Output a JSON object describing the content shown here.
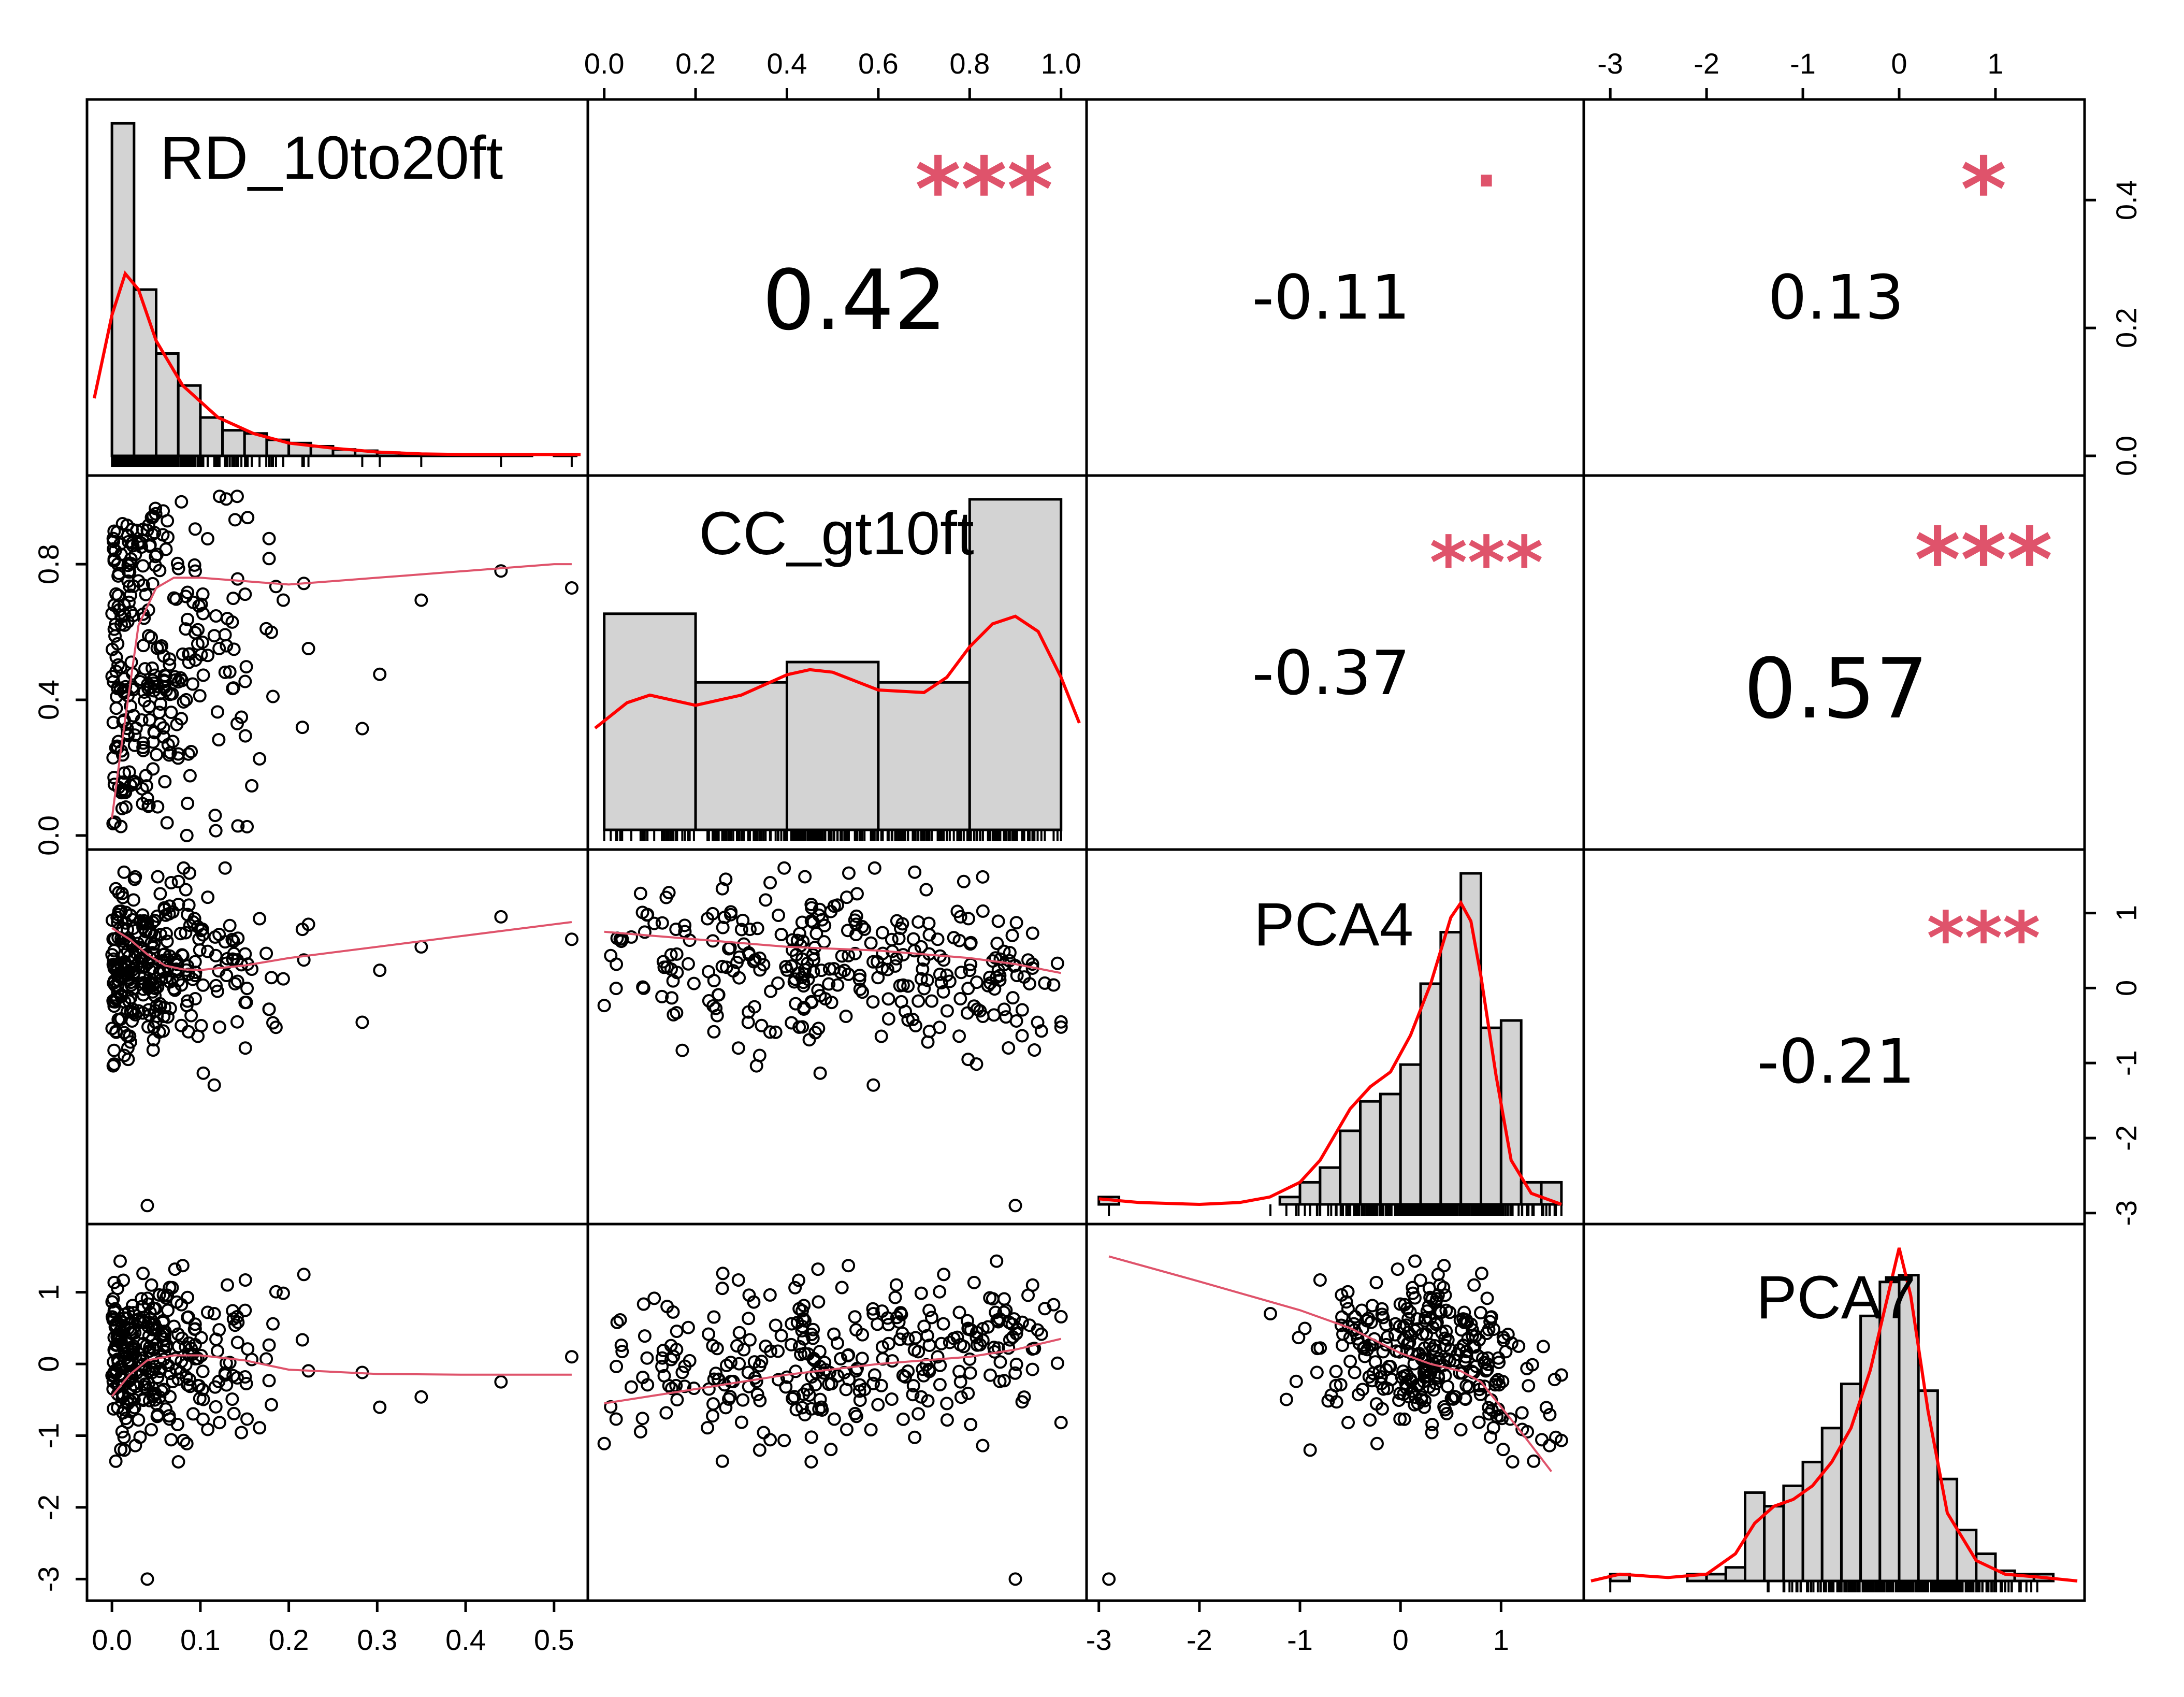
{
  "chart_data": {
    "type": "scatter-matrix",
    "title": "",
    "variables": [
      "RD_10to20ft",
      "CC_gt10ft",
      "PCA4",
      "PCA7"
    ],
    "ranges": {
      "RD_10to20ft": [
        -0.02,
        0.53
      ],
      "CC_gt10ft": [
        -0.02,
        1.04
      ],
      "PCA4": [
        -3.05,
        1.75
      ],
      "PCA7": [
        -3.2,
        1.85
      ]
    },
    "axis_ticks": {
      "RD_10to20ft": [
        "0.0",
        "0.1",
        "0.2",
        "0.3",
        "0.4",
        "0.5"
      ],
      "CC_gt10ft_top": [
        "0.0",
        "0.2",
        "0.4",
        "0.6",
        "0.8",
        "1.0"
      ],
      "CC_gt10ft_left": [
        "0.0",
        "0.4",
        "0.8"
      ],
      "PCA4_bottom": [
        "-3",
        "-2",
        "-1",
        "0",
        "1"
      ],
      "PCA4_right": [
        "1",
        "0",
        "-1",
        "-2",
        "-3"
      ],
      "PCA7_top": [
        "-3",
        "-2",
        "-1",
        "0",
        "1"
      ],
      "PCA7_left": [
        "1",
        "0",
        "-1",
        "-2",
        "-3"
      ],
      "density_right": [
        "0.0",
        "0.2",
        "0.4"
      ]
    },
    "correlations": [
      {
        "row": 0,
        "col": 1,
        "r": "0.42",
        "sig": "***"
      },
      {
        "row": 0,
        "col": 2,
        "r": "-0.11",
        "sig": "."
      },
      {
        "row": 0,
        "col": 3,
        "r": "0.13",
        "sig": "*"
      },
      {
        "row": 1,
        "col": 2,
        "r": "-0.37",
        "sig": "***"
      },
      {
        "row": 1,
        "col": 3,
        "r": "0.57",
        "sig": "***"
      },
      {
        "row": 2,
        "col": 3,
        "r": "-0.21",
        "sig": "***"
      }
    ],
    "histograms": {
      "RD_10to20ft": {
        "breaks": [
          0,
          0.025,
          0.05,
          0.075,
          0.1,
          0.125,
          0.15,
          0.175,
          0.2,
          0.225,
          0.25,
          0.275,
          0.3,
          0.325,
          0.35,
          0.375,
          0.4,
          0.425,
          0.45,
          0.475,
          0.5,
          0.525
        ],
        "density": [
          0.52,
          0.26,
          0.16,
          0.11,
          0.06,
          0.04,
          0.035,
          0.025,
          0.02,
          0.015,
          0.01,
          0.008,
          0.005,
          0.003,
          0.002,
          0.001,
          0.001,
          0.001,
          0.002,
          0.0,
          0.002
        ],
        "curve_x": [
          -0.02,
          0.0,
          0.015,
          0.03,
          0.05,
          0.08,
          0.12,
          0.16,
          0.2,
          0.25,
          0.3,
          0.35,
          0.4,
          0.45,
          0.5,
          0.53
        ],
        "curve_y": [
          0.09,
          0.22,
          0.285,
          0.26,
          0.18,
          0.11,
          0.06,
          0.035,
          0.02,
          0.012,
          0.006,
          0.003,
          0.002,
          0.002,
          0.002,
          0.002
        ]
      },
      "CC_gt10ft": {
        "breaks": [
          0,
          0.2,
          0.4,
          0.6,
          0.8,
          1.0
        ],
        "density": [
          0.85,
          0.58,
          0.66,
          0.58,
          1.3
        ],
        "curve_x": [
          -0.02,
          0.05,
          0.1,
          0.2,
          0.3,
          0.4,
          0.45,
          0.5,
          0.6,
          0.7,
          0.75,
          0.8,
          0.85,
          0.9,
          0.95,
          1.0,
          1.04
        ],
        "curve_y": [
          0.4,
          0.5,
          0.53,
          0.49,
          0.53,
          0.61,
          0.63,
          0.62,
          0.55,
          0.54,
          0.6,
          0.72,
          0.81,
          0.84,
          0.78,
          0.6,
          0.42
        ]
      },
      "PCA4": {
        "breaks": [
          -3.0,
          -2.8,
          -2.6,
          -2.4,
          -2.2,
          -2.0,
          -1.8,
          -1.6,
          -1.4,
          -1.2,
          -1.0,
          -0.8,
          -0.6,
          -0.4,
          -0.2,
          0.0,
          0.2,
          0.4,
          0.6,
          0.8,
          1.0,
          1.2,
          1.4,
          1.6
        ],
        "density": [
          0.02,
          0.0,
          0.0,
          0.0,
          0.0,
          0.0,
          0.0,
          0.0,
          0.0,
          0.02,
          0.06,
          0.1,
          0.2,
          0.28,
          0.3,
          0.38,
          0.6,
          0.74,
          0.9,
          0.48,
          0.5,
          0.06,
          0.06
        ],
        "curve_x": [
          -3.0,
          -2.6,
          -2.0,
          -1.6,
          -1.3,
          -1.0,
          -0.8,
          -0.5,
          -0.3,
          -0.1,
          0.1,
          0.3,
          0.5,
          0.6,
          0.7,
          0.8,
          0.95,
          1.1,
          1.3,
          1.6
        ],
        "curve_y": [
          0.015,
          0.005,
          0.0,
          0.005,
          0.02,
          0.06,
          0.12,
          0.26,
          0.32,
          0.36,
          0.46,
          0.6,
          0.78,
          0.82,
          0.77,
          0.62,
          0.35,
          0.12,
          0.03,
          0.0
        ]
      },
      "PCA7": {
        "breaks": [
          -3.0,
          -2.8,
          -2.6,
          -2.4,
          -2.2,
          -2.0,
          -1.8,
          -1.6,
          -1.4,
          -1.2,
          -1.0,
          -0.8,
          -0.6,
          -0.4,
          -0.2,
          0.0,
          0.2,
          0.4,
          0.6,
          0.8,
          1.0,
          1.2,
          1.4,
          1.6
        ],
        "density": [
          0.02,
          0.0,
          0.0,
          0.0,
          0.02,
          0.02,
          0.04,
          0.26,
          0.22,
          0.28,
          0.35,
          0.45,
          0.58,
          0.78,
          0.88,
          0.9,
          0.56,
          0.3,
          0.15,
          0.08,
          0.03,
          0.02,
          0.02
        ],
        "curve_x": [
          -3.2,
          -2.9,
          -2.4,
          -2.0,
          -1.7,
          -1.5,
          -1.3,
          -1.1,
          -0.9,
          -0.7,
          -0.5,
          -0.3,
          -0.15,
          0.0,
          0.12,
          0.3,
          0.5,
          0.8,
          1.1,
          1.5,
          1.85
        ],
        "curve_y": [
          0.0,
          0.02,
          0.01,
          0.02,
          0.08,
          0.17,
          0.22,
          0.24,
          0.28,
          0.35,
          0.45,
          0.62,
          0.8,
          0.98,
          0.84,
          0.5,
          0.2,
          0.06,
          0.02,
          0.01,
          0.0
        ]
      }
    },
    "smooth_lines": {
      "1_0": {
        "x": [
          0.0,
          0.01,
          0.03,
          0.05,
          0.07,
          0.1,
          0.15,
          0.2,
          0.3,
          0.4,
          0.5,
          0.52
        ],
        "y": [
          0.05,
          0.25,
          0.62,
          0.73,
          0.76,
          0.76,
          0.75,
          0.74,
          0.76,
          0.78,
          0.8,
          0.8
        ]
      },
      "2_0": {
        "x": [
          0.0,
          0.02,
          0.04,
          0.06,
          0.08,
          0.1,
          0.15,
          0.2,
          0.3,
          0.4,
          0.5,
          0.52
        ],
        "y": [
          0.8,
          0.65,
          0.45,
          0.3,
          0.25,
          0.24,
          0.3,
          0.4,
          0.55,
          0.7,
          0.85,
          0.88
        ]
      },
      "2_1": {
        "x": [
          0.0,
          0.2,
          0.4,
          0.6,
          0.7,
          0.8,
          0.9,
          1.0
        ],
        "y": [
          0.75,
          0.65,
          0.55,
          0.5,
          0.45,
          0.4,
          0.32,
          0.2
        ]
      },
      "3_0": {
        "x": [
          0.0,
          0.02,
          0.04,
          0.07,
          0.1,
          0.15,
          0.2,
          0.3,
          0.4,
          0.5,
          0.52
        ],
        "y": [
          -0.45,
          -0.15,
          0.05,
          0.12,
          0.12,
          0.05,
          -0.08,
          -0.14,
          -0.15,
          -0.15,
          -0.15
        ]
      },
      "3_1": {
        "x": [
          0.0,
          0.2,
          0.4,
          0.6,
          0.8,
          0.9,
          1.0
        ],
        "y": [
          -0.55,
          -0.35,
          -0.15,
          0.0,
          0.1,
          0.2,
          0.35
        ]
      },
      "3_2": {
        "x": [
          -2.9,
          -2.0,
          -1.0,
          -0.5,
          0.0,
          0.3,
          0.6,
          0.8,
          1.0,
          1.2,
          1.5
        ],
        "y": [
          1.5,
          1.15,
          0.75,
          0.5,
          0.15,
          0.0,
          -0.1,
          -0.25,
          -0.6,
          -0.95,
          -1.5
        ]
      }
    }
  },
  "labels": {
    "var0": "RD_10to20ft",
    "var1": "CC_gt10ft",
    "var2": "PCA4",
    "var3": "PCA7",
    "r01": "0.42",
    "s01": "***",
    "r02": "-0.11",
    "s02": ".",
    "r03": "0.13",
    "s03": "*",
    "r12": "-0.37",
    "s12": "***",
    "r13": "0.57",
    "s13": "***",
    "r23": "-0.21",
    "s23": "***"
  },
  "colors": {
    "density_line": "#ff0000",
    "smooth_line": "#df536b",
    "significance": "#df536b",
    "bar_fill": "#d3d3d3"
  }
}
